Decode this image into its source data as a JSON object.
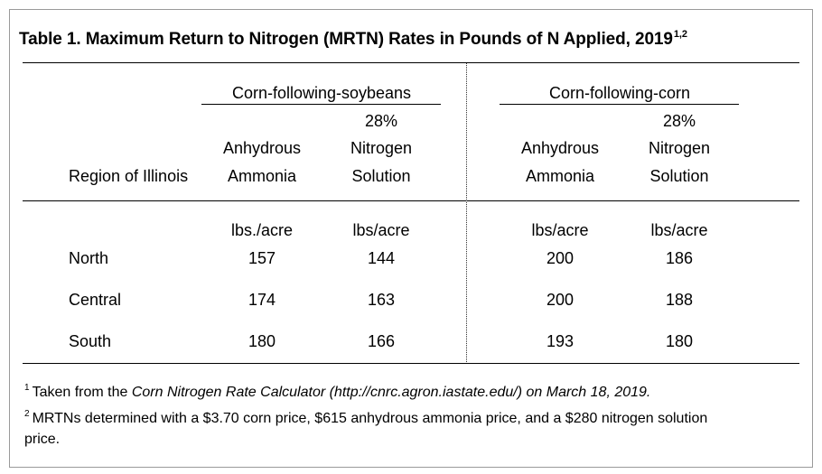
{
  "title": {
    "text": "Table 1.  Maximum Return to Nitrogen (MRTN) Rates in Pounds of N Applied, 2019",
    "superscript": "1,2"
  },
  "group_headers": {
    "soy": "Corn-following-soybeans",
    "corn": "Corn-following-corn"
  },
  "column_headers": {
    "region": "Region of Illinois",
    "soy_anhydrous": [
      "Anhydrous",
      "Ammonia"
    ],
    "soy_solution": [
      "28%",
      "Nitrogen",
      "Solution"
    ],
    "corn_anhydrous": [
      "Anhydrous",
      "Ammonia"
    ],
    "corn_solution": [
      "28%",
      "Nitrogen",
      "Solution"
    ]
  },
  "units": [
    "lbs./acre",
    "lbs/acre",
    "lbs/acre",
    "lbs/acre"
  ],
  "rows": [
    {
      "region": "North",
      "values": [
        "157",
        "144",
        "200",
        "186"
      ]
    },
    {
      "region": "Central",
      "values": [
        "174",
        "163",
        "200",
        "188"
      ]
    },
    {
      "region": "South",
      "values": [
        "180",
        "166",
        "193",
        "180"
      ]
    }
  ],
  "footnotes": [
    {
      "mark": "1",
      "prefix": "Taken from the ",
      "italic": "Corn Nitrogen Rate Calculator (http://cnrc.agron.iastate.edu/) on March 18, 2019."
    },
    {
      "mark": "2",
      "line1": "MRTNs determined with a $3.70 corn price, $615 anhydrous ammonia price, and a $280 nitrogen solution",
      "line2": "price."
    }
  ]
}
